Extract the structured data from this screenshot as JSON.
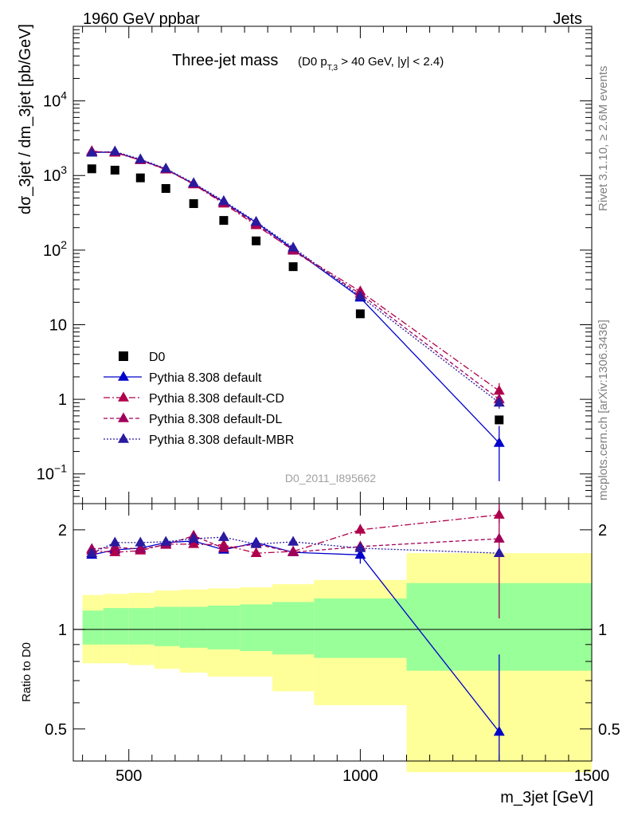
{
  "header": {
    "beam": "1960 GeV ppbar",
    "process": "Jets"
  },
  "side": {
    "rivet": "Rivet 3.1.10, ≥ 2.6M events",
    "source": "mcplots.cern.ch [arXiv:1306.3436]"
  },
  "colors": {
    "data": "#000000",
    "default": "#0000cc",
    "cd": "#b0004a",
    "dl": "#a0005a",
    "mbr": "#2a1aa0",
    "band_inner": "#99ff99",
    "band_outer": "#ffff99"
  },
  "chart_data": [
    {
      "type": "scatter",
      "title_main": "Three-jet mass",
      "title_cut_pre": "(D0 p",
      "title_cut_sub": "T,3",
      "title_cut_post": " > 40 GeV, |y| < 2.4)",
      "ylabel": "dσ_3jet / dm_3jet [pb/GeV]",
      "analysis_id": "D0_2011_I895662",
      "yscale": "log",
      "xlim": [
        380,
        1500
      ],
      "ylim": [
        0.04,
        100000
      ],
      "y_ticks": [
        {
          "value": 0.1,
          "base": "10",
          "exp": "−1"
        },
        {
          "value": 1,
          "label": "1"
        },
        {
          "value": 10,
          "label": "10"
        },
        {
          "value": 100,
          "base": "10",
          "exp": "2"
        },
        {
          "value": 1000,
          "base": "10",
          "exp": "3"
        },
        {
          "value": 10000,
          "base": "10",
          "exp": "4"
        }
      ],
      "x": [
        420,
        470,
        525,
        580,
        640,
        705,
        775,
        855,
        1000,
        1300
      ],
      "series": [
        {
          "name": "D0",
          "style": "data",
          "values": [
            1230,
            1180,
            930,
            670,
            420,
            250,
            133,
            60,
            14,
            0.53
          ],
          "err": [
            0,
            0,
            0,
            0,
            0,
            0,
            0,
            0,
            0,
            0.06
          ]
        },
        {
          "name": "Pythia 8.308 default",
          "style": "default",
          "values": [
            2050,
            2050,
            1620,
            1220,
            770,
            440,
            235,
            103,
            23,
            0.26
          ],
          "err": [
            0,
            0,
            0,
            0,
            0,
            0,
            0,
            0,
            0,
            0.18
          ]
        },
        {
          "name": "Pythia 8.308 default-CD",
          "style": "cd",
          "values": [
            2120,
            2020,
            1610,
            1210,
            760,
            420,
            215,
            100,
            28,
            1.3
          ],
          "err": [
            0,
            0,
            0,
            0,
            0,
            0,
            0,
            0,
            0,
            0.35
          ]
        },
        {
          "name": "Pythia 8.308 default-DL",
          "style": "dl",
          "values": [
            2080,
            2060,
            1600,
            1200,
            780,
            430,
            225,
            98,
            26,
            1.0
          ],
          "err": [
            0,
            0,
            0,
            0,
            0,
            0,
            0,
            0,
            0,
            0.2
          ]
        },
        {
          "name": "Pythia 8.308 default-MBR",
          "style": "mbr",
          "values": [
            2020,
            2100,
            1650,
            1240,
            790,
            455,
            240,
            108,
            24,
            0.9
          ],
          "err": [
            0,
            0,
            0,
            0,
            0,
            0,
            0,
            0,
            0,
            0.15
          ]
        }
      ]
    },
    {
      "type": "line",
      "ylabel": "Ratio to D0",
      "xlabel": "m_3jet [GeV]",
      "xlim": [
        380,
        1500
      ],
      "ylim": [
        0.4,
        2.4
      ],
      "x_ticks": [
        500,
        1000,
        1500
      ],
      "y_ticks": [
        0.5,
        1,
        2
      ],
      "bands": [
        {
          "x0": 400,
          "x1": 445,
          "inner": [
            0.9,
            1.14
          ],
          "outer": [
            0.79,
            1.27
          ]
        },
        {
          "x0": 445,
          "x1": 500,
          "inner": [
            0.9,
            1.16
          ],
          "outer": [
            0.79,
            1.28
          ]
        },
        {
          "x0": 500,
          "x1": 555,
          "inner": [
            0.9,
            1.16
          ],
          "outer": [
            0.78,
            1.29
          ]
        },
        {
          "x0": 555,
          "x1": 610,
          "inner": [
            0.89,
            1.17
          ],
          "outer": [
            0.76,
            1.31
          ]
        },
        {
          "x0": 610,
          "x1": 670,
          "inner": [
            0.88,
            1.17
          ],
          "outer": [
            0.74,
            1.32
          ]
        },
        {
          "x0": 670,
          "x1": 740,
          "inner": [
            0.87,
            1.18
          ],
          "outer": [
            0.72,
            1.33
          ]
        },
        {
          "x0": 740,
          "x1": 810,
          "inner": [
            0.86,
            1.19
          ],
          "outer": [
            0.72,
            1.34
          ]
        },
        {
          "x0": 810,
          "x1": 900,
          "inner": [
            0.84,
            1.21
          ],
          "outer": [
            0.65,
            1.37
          ]
        },
        {
          "x0": 900,
          "x1": 1100,
          "inner": [
            0.82,
            1.24
          ],
          "outer": [
            0.59,
            1.41
          ]
        },
        {
          "x0": 1100,
          "x1": 1500,
          "inner": [
            0.75,
            1.38
          ],
          "outer": [
            0.37,
            1.7
          ]
        }
      ],
      "series": [
        {
          "name": "Pythia 8.308 default",
          "style": "default",
          "values": [
            1.68,
            1.74,
            1.76,
            1.83,
            1.85,
            1.74,
            1.83,
            1.71,
            1.68,
            0.49
          ],
          "err": [
            0,
            0,
            0,
            0,
            0,
            0,
            0,
            0,
            0.1,
            0.35
          ]
        },
        {
          "name": "Pythia 8.308 default-CD",
          "style": "cd",
          "values": [
            1.73,
            1.71,
            1.73,
            1.81,
            1.81,
            1.8,
            1.7,
            1.72,
            2.0,
            2.22
          ],
          "err": [
            0,
            0,
            0,
            0,
            0,
            0,
            0,
            0,
            0.08,
            0.12
          ]
        },
        {
          "name": "Pythia 8.308 default-DL",
          "style": "dl",
          "values": [
            1.75,
            1.77,
            1.75,
            1.8,
            1.92,
            1.76,
            1.81,
            1.71,
            1.78,
            1.88
          ],
          "err": [
            0,
            0,
            0,
            0,
            0,
            0,
            0,
            0,
            0.06,
            0.8
          ]
        },
        {
          "name": "Pythia 8.308 default-MBR",
          "style": "mbr",
          "values": [
            1.7,
            1.83,
            1.83,
            1.84,
            1.88,
            1.9,
            1.81,
            1.84,
            1.76,
            1.7
          ],
          "err": [
            0,
            0,
            0,
            0,
            0,
            0,
            0,
            0,
            0,
            0.03
          ]
        }
      ]
    }
  ]
}
